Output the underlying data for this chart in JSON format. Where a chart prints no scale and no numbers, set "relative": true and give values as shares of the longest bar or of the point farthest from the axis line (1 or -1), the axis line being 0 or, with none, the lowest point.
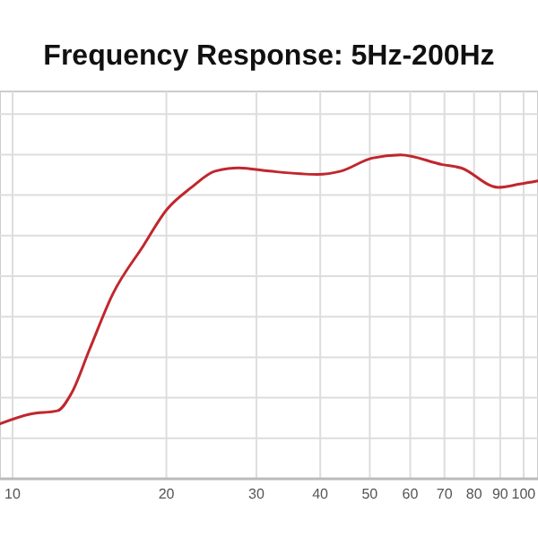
{
  "chart_data": {
    "type": "line",
    "title": "Frequency Response: 5Hz-200Hz",
    "relative": true,
    "log": "x",
    "grid": true,
    "xlim": [
      9.45,
      106.7
    ],
    "xticks": [
      10,
      20,
      30,
      40,
      50,
      60,
      70,
      80,
      90,
      100
    ],
    "series": [
      {
        "color": "#c0272d",
        "x": [
          9.45,
          10.84,
          12.24,
          13.05,
          14.15,
          15.7,
          18.03,
          20.0,
          22.4,
          24.9,
          27.7,
          31.8,
          39.5,
          43.9,
          50.5,
          57.4,
          69.4,
          75.4,
          89.1,
          98.2,
          106.7
        ],
        "values": [
          0.17,
          0.2,
          0.21,
          0.265,
          0.4,
          0.57,
          0.72,
          0.83,
          0.9,
          0.95,
          0.96,
          0.95,
          0.94,
          0.95,
          0.99,
          1.0,
          0.97,
          0.96,
          0.9,
          0.91,
          0.92
        ]
      }
    ]
  }
}
